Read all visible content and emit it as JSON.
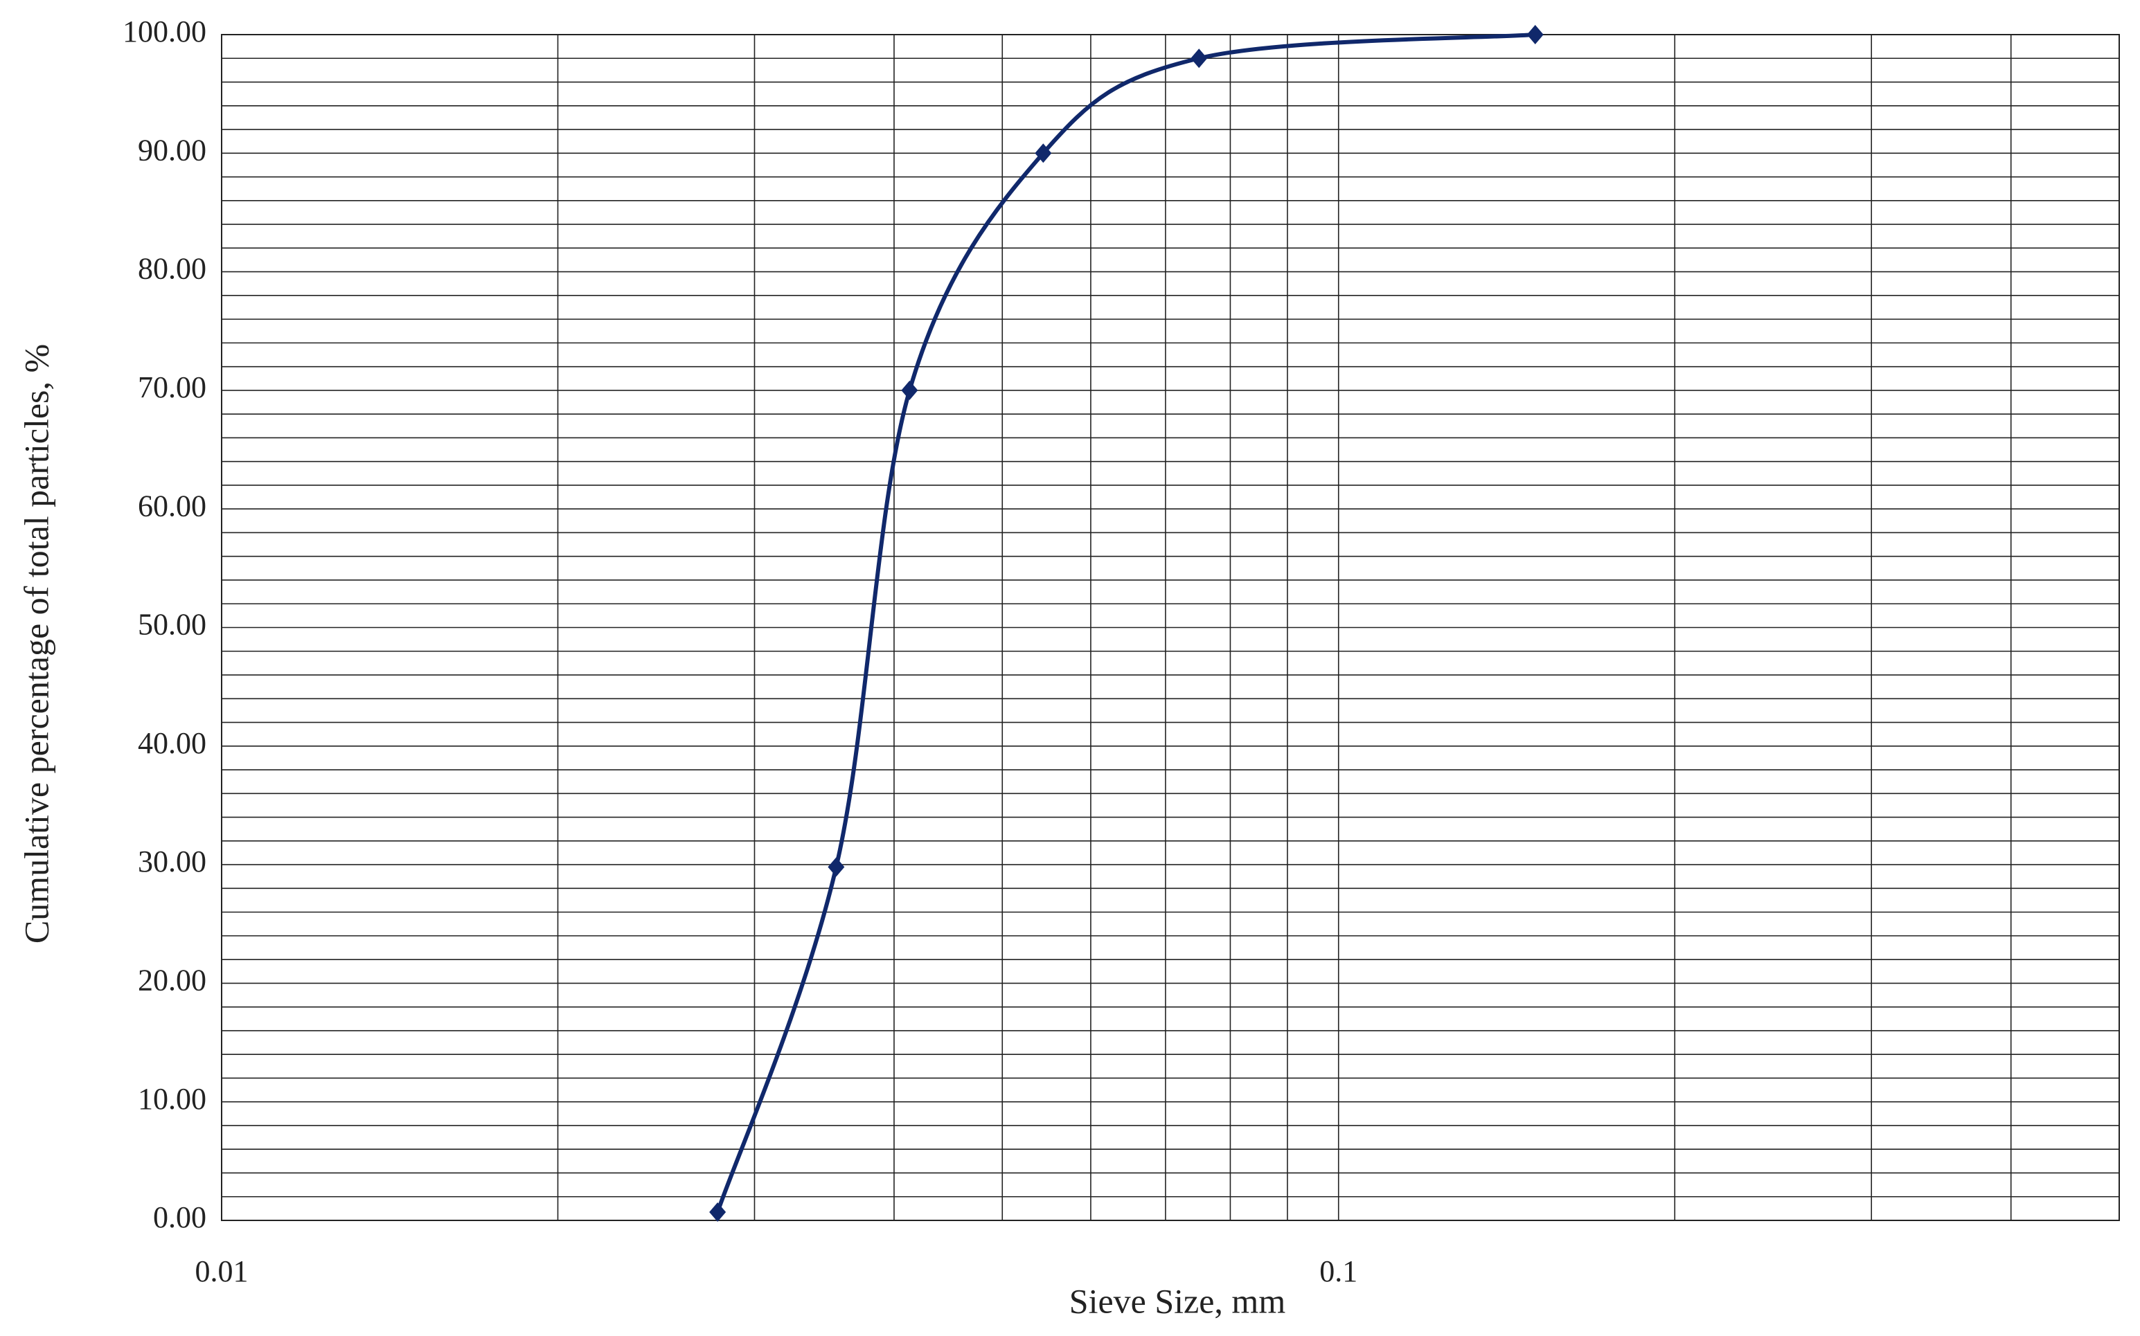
{
  "chart_data": {
    "type": "line",
    "xlabel": "Sieve Size, mm",
    "ylabel": "Cumulative percentage of total particles, %",
    "x": [
      0.0278,
      0.0355,
      0.0413,
      0.0544,
      0.075,
      0.15
    ],
    "series": [
      {
        "color": "#10286b",
        "values": [
          0.7,
          29.8,
          70,
          90,
          98,
          100
        ]
      }
    ],
    "xscale": "log",
    "xlim": [
      0.01,
      0.5
    ],
    "xticks": [
      0.01,
      0.1
    ],
    "ylim": [
      0,
      100
    ],
    "yticks": [
      {
        "value": 0,
        "label": "0.00"
      },
      {
        "value": 10,
        "label": "10.00"
      },
      {
        "value": 20,
        "label": "20.00"
      },
      {
        "value": 30,
        "label": "30.00"
      },
      {
        "value": 40,
        "label": "40.00"
      },
      {
        "value": 50,
        "label": "50.00"
      },
      {
        "value": 60,
        "label": "60.00"
      },
      {
        "value": 70,
        "label": "70.00"
      },
      {
        "value": 80,
        "label": "80.00"
      },
      {
        "value": 90,
        "label": "90.00"
      },
      {
        "value": 100,
        "label": "100.00"
      }
    ],
    "grid": true,
    "minor_grid": true,
    "smooth": true
  }
}
